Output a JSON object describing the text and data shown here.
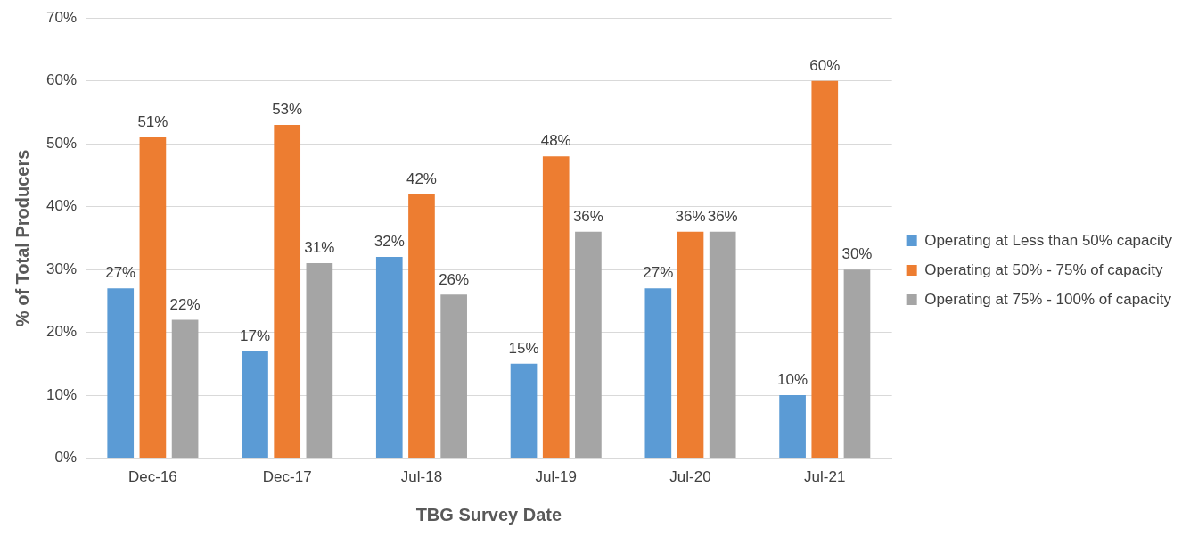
{
  "chart_data": {
    "type": "bar",
    "xlabel": "TBG Survey Date",
    "ylabel": "% of Total Producers",
    "categories": [
      "Dec-16",
      "Dec-17",
      "Jul-18",
      "Jul-19",
      "Jul-20",
      "Jul-21"
    ],
    "series": [
      {
        "name": "Operating at Less than 50% capacity",
        "color": "#5b9bd5",
        "values": [
          27,
          17,
          32,
          15,
          27,
          10
        ],
        "value_labels": [
          "27%",
          "17%",
          "32%",
          "15%",
          "27%",
          "10%"
        ]
      },
      {
        "name": "Operating at 50% - 75% of capacity",
        "color": "#ed7d31",
        "values": [
          51,
          53,
          42,
          48,
          36,
          60
        ],
        "value_labels": [
          "51%",
          "53%",
          "42%",
          "48%",
          "36%",
          "60%"
        ]
      },
      {
        "name": "Operating at 75% - 100% of capacity",
        "color": "#a5a5a5",
        "values": [
          22,
          31,
          26,
          36,
          36,
          30
        ],
        "value_labels": [
          "22%",
          "31%",
          "26%",
          "36%",
          "36%",
          "30%"
        ]
      }
    ],
    "ylim": [
      0,
      70
    ],
    "yticks": [
      {
        "value": 0,
        "label": "0%"
      },
      {
        "value": 10,
        "label": "10%"
      },
      {
        "value": 20,
        "label": "20%"
      },
      {
        "value": 30,
        "label": "30%"
      },
      {
        "value": 40,
        "label": "40%"
      },
      {
        "value": 50,
        "label": "50%"
      },
      {
        "value": 60,
        "label": "60%"
      },
      {
        "value": 70,
        "label": "70%"
      }
    ],
    "grid": "y",
    "legend": "right"
  }
}
